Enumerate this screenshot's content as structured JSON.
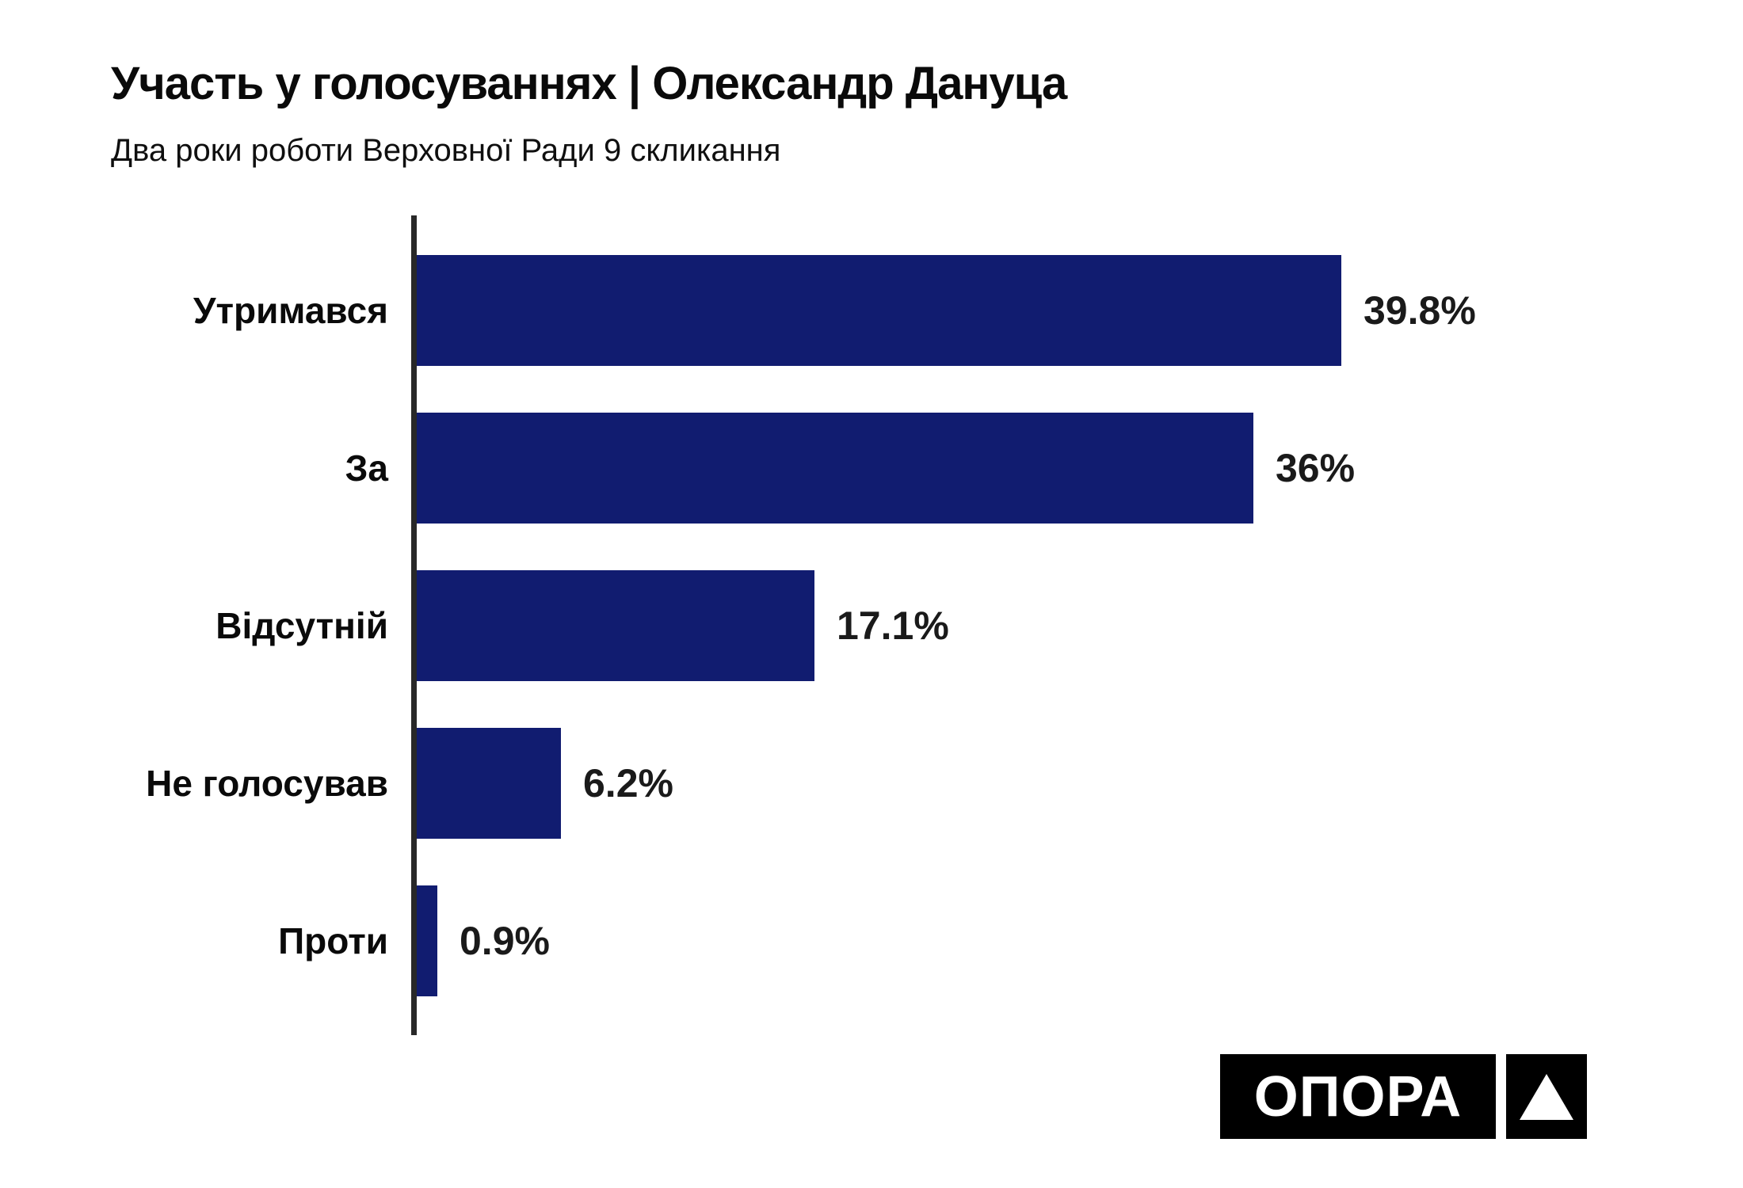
{
  "chart_data": {
    "type": "bar",
    "orientation": "horizontal",
    "title": "Участь у голосуваннях | Олександр Дануца",
    "subtitle": "Два роки роботи Верховної Ради 9 скликання",
    "categories": [
      "Утримався",
      "За",
      "Відсутній",
      "Не голосував",
      "Проти"
    ],
    "values": [
      39.8,
      36,
      17.1,
      6.2,
      0.9
    ],
    "value_labels": [
      "39.8%",
      "36%",
      "17.1%",
      "6.2%",
      "0.9%"
    ],
    "xlim": [
      0,
      45
    ],
    "grid": false,
    "legend": "none",
    "bar_color": "#111c70",
    "axis_color": "#282828",
    "text_color": "#0a0a0a"
  },
  "logo": {
    "text": "ОПОРА",
    "bg_color": "#000000",
    "fg_color": "#ffffff",
    "mark": "triangle-up"
  }
}
